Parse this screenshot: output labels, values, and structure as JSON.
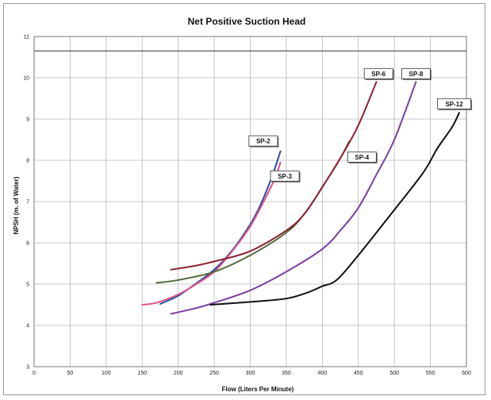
{
  "chart_data": {
    "type": "line",
    "title": "Net Positive Suction Head",
    "xlabel": "Flow (Liters Per Minute)",
    "ylabel": "NPSH  (m. of Water)",
    "xlim": [
      0,
      600
    ],
    "ylim": [
      3,
      11
    ],
    "x_ticks": [
      "0",
      "50",
      "100",
      "150",
      "200",
      "250",
      "300",
      "350",
      "400",
      "450",
      "500",
      "550",
      "600"
    ],
    "y_ticks": [
      "3",
      "4",
      "5",
      "6",
      "7",
      "8",
      "9",
      "10",
      "11"
    ],
    "grid": true,
    "reference_line_y": 10.65,
    "series": [
      {
        "name": "SP-2",
        "color": "#2b4f9e",
        "points": [
          [
            175,
            4.52
          ],
          [
            200,
            4.72
          ],
          [
            225,
            5.02
          ],
          [
            250,
            5.35
          ],
          [
            275,
            5.82
          ],
          [
            300,
            6.45
          ],
          [
            315,
            6.95
          ],
          [
            330,
            7.6
          ],
          [
            342,
            8.22
          ]
        ]
      },
      {
        "name": "SP-3",
        "color": "#e0508a",
        "points": [
          [
            150,
            4.5
          ],
          [
            170,
            4.55
          ],
          [
            200,
            4.75
          ],
          [
            225,
            5.0
          ],
          [
            250,
            5.3
          ],
          [
            275,
            5.8
          ],
          [
            300,
            6.4
          ],
          [
            320,
            7.05
          ],
          [
            335,
            7.6
          ],
          [
            342,
            7.95
          ]
        ]
      },
      {
        "name": "SP-4",
        "color": "#536b3a",
        "points": [
          [
            170,
            5.03
          ],
          [
            200,
            5.1
          ],
          [
            250,
            5.3
          ],
          [
            300,
            5.7
          ],
          [
            350,
            6.25
          ],
          [
            375,
            6.7
          ],
          [
            400,
            7.35
          ],
          [
            425,
            8.05
          ],
          [
            437,
            8.45
          ]
        ]
      },
      {
        "name": "SP-6",
        "color": "#8b2230",
        "points": [
          [
            190,
            5.35
          ],
          [
            225,
            5.45
          ],
          [
            250,
            5.55
          ],
          [
            300,
            5.8
          ],
          [
            350,
            6.3
          ],
          [
            375,
            6.7
          ],
          [
            400,
            7.35
          ],
          [
            425,
            8.05
          ],
          [
            450,
            8.85
          ],
          [
            475,
            9.9
          ]
        ]
      },
      {
        "name": "SP-8",
        "color": "#7a3fa0",
        "points": [
          [
            190,
            4.28
          ],
          [
            225,
            4.42
          ],
          [
            250,
            4.55
          ],
          [
            300,
            4.85
          ],
          [
            350,
            5.3
          ],
          [
            400,
            5.85
          ],
          [
            425,
            6.3
          ],
          [
            450,
            6.85
          ],
          [
            475,
            7.65
          ],
          [
            500,
            8.5
          ],
          [
            530,
            9.9
          ]
        ]
      },
      {
        "name": "SP-12",
        "color": "#111111",
        "points": [
          [
            245,
            4.5
          ],
          [
            300,
            4.57
          ],
          [
            350,
            4.65
          ],
          [
            380,
            4.8
          ],
          [
            400,
            4.95
          ],
          [
            420,
            5.1
          ],
          [
            450,
            5.7
          ],
          [
            500,
            6.8
          ],
          [
            540,
            7.7
          ],
          [
            560,
            8.3
          ],
          [
            580,
            8.8
          ],
          [
            590,
            9.15
          ]
        ]
      }
    ],
    "labels": [
      {
        "text": "SP-2",
        "x": 318,
        "y": 8.47
      },
      {
        "text": "SP-3",
        "x": 348,
        "y": 7.62
      },
      {
        "text": "SP-4",
        "x": 455,
        "y": 8.08
      },
      {
        "text": "SP-6",
        "x": 478,
        "y": 10.1
      },
      {
        "text": "SP-8",
        "x": 530,
        "y": 10.1
      },
      {
        "text": "SP-12",
        "x": 583,
        "y": 9.37
      }
    ]
  }
}
